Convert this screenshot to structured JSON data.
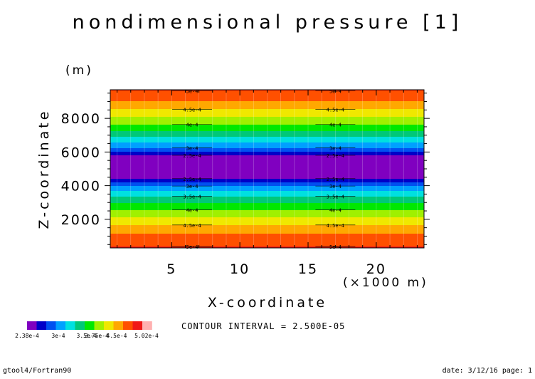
{
  "chart_data": {
    "type": "heatmap",
    "title": "nondimensional pressure [1]",
    "xlabel": "X-coordinate",
    "xunit": "(×1000 m)",
    "ylabel": "Z-coordinate",
    "yunit": "(m)",
    "xlim": [
      0.5,
      23.5
    ],
    "ylim": [
      300,
      9700
    ],
    "xticks": [
      5,
      10,
      15,
      20
    ],
    "yticks": [
      2000,
      4000,
      6000,
      8000
    ],
    "min": 0.000238,
    "max": 0.000502,
    "contour_interval": "CONTOUR INTERVAL = 2.500E-05",
    "levels": [
      0.000238,
      0.00025,
      0.000275,
      0.0003,
      0.000325,
      0.00035,
      0.000375,
      0.0004,
      0.000425,
      0.00045,
      0.000475,
      0.0005,
      0.000502
    ],
    "colorbar_labels": [
      "2.38e-4",
      "3e-4",
      "3.5e-4",
      "3.75e-4",
      "4.5e-4",
      "5.02e-4"
    ],
    "contour_labels": [
      {
        "text": "5e-4",
        "value": 0.0005
      },
      {
        "text": "4.5e-4",
        "value": 0.00045
      },
      {
        "text": "4e-4",
        "value": 0.0004
      },
      {
        "text": "3.5e-4",
        "value": 0.00035
      },
      {
        "text": "3e-4",
        "value": 0.0003
      },
      {
        "text": "2.5e-4",
        "value": 0.00025
      }
    ],
    "profile_z": [
      300,
      900,
      1500,
      2100,
      2700,
      3300,
      3900,
      4500,
      5100,
      5700,
      6300,
      6900,
      7500,
      8100,
      8700,
      9300,
      9700
    ],
    "profile_p": [
      0.000502,
      0.000487,
      0.000459,
      0.000426,
      0.000392,
      0.000355,
      0.000309,
      0.00024,
      0.000238,
      0.000238,
      0.000306,
      0.00035,
      0.000392,
      0.000426,
      0.000459,
      0.000487,
      0.000502
    ]
  },
  "colors": [
    "#8000c0",
    "#0000c8",
    "#0050f0",
    "#00a0ff",
    "#00e0e0",
    "#00c878",
    "#00e800",
    "#a0f000",
    "#f0e800",
    "#ffa800",
    "#ff5000",
    "#f01818",
    "#ffb0b0"
  ],
  "footer": {
    "left": "gtool4/Fortran90",
    "right": "date: 3/12/16 page: 1"
  }
}
